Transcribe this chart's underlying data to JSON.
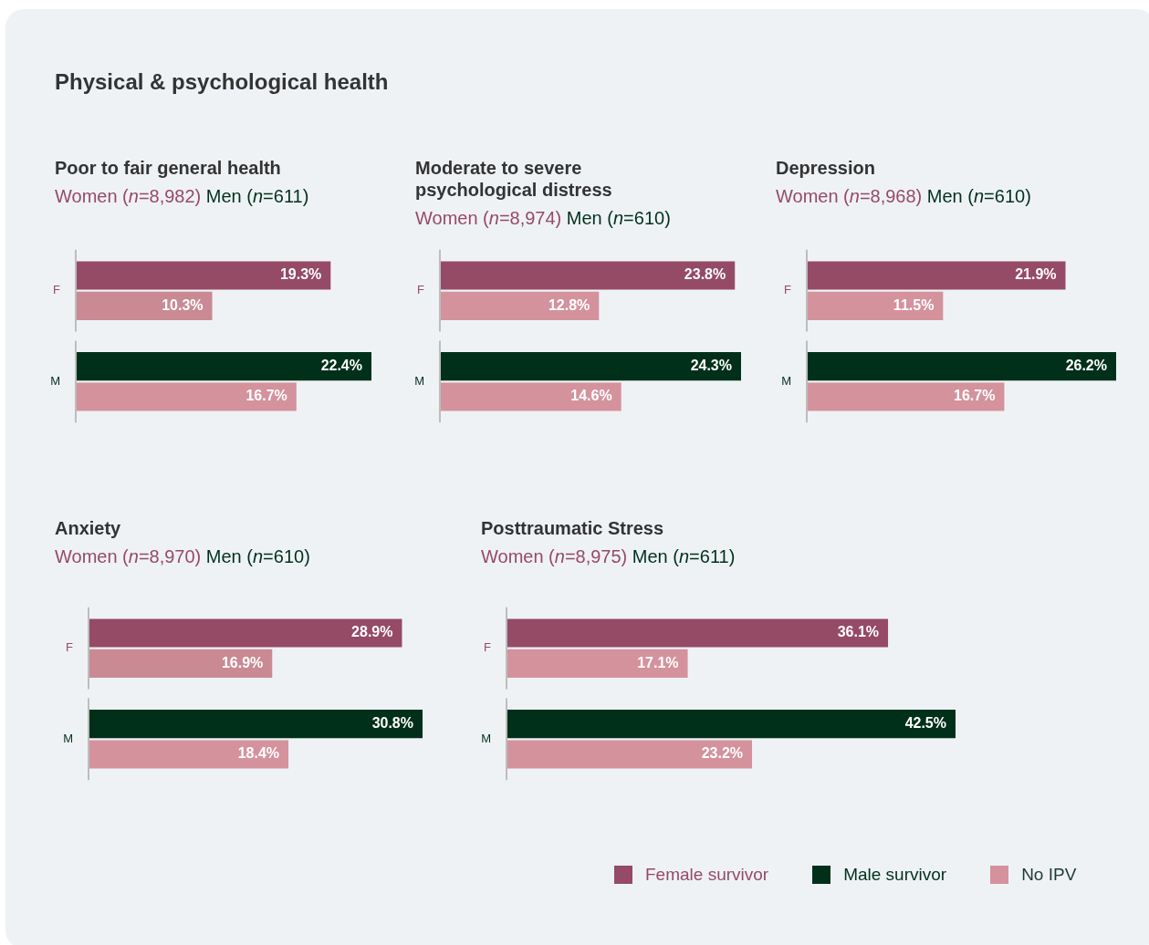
{
  "chart_data": [
    {
      "type": "bar",
      "orientation": "horizontal",
      "title": "Poor to fair general health",
      "subtitle": "Women (n=8,982) Men (n=611)",
      "annotations": [
        "Physical & psychological health"
      ],
      "categories": [
        "F",
        "M"
      ],
      "legend": "bottom right",
      "series": [
        {
          "name": "Female survivor",
          "color": "#954a66",
          "values": [
            19.3,
            null
          ],
          "value_labels": [
            "19.3%",
            null
          ]
        },
        {
          "name": "Male survivor",
          "color": "#00301a",
          "values": [
            null,
            22.4
          ],
          "value_labels": [
            null,
            "22.4%"
          ]
        },
        {
          "name": "No IPV",
          "color": "#d4929d",
          "colors": [
            "#c98a94",
            "#d4929d"
          ],
          "values": [
            10.3,
            16.7
          ],
          "value_labels": [
            "10.3%",
            "16.7%"
          ]
        }
      ]
    },
    {
      "type": "bar",
      "orientation": "horizontal",
      "title": "Moderate to severe psychological distress",
      "subtitle": "Women (n=8,974) Men (n=610)",
      "categories": [
        "F",
        "M"
      ],
      "series": [
        {
          "color": "#954a66",
          "values": [
            23.8,
            null
          ],
          "value_labels": [
            "23.8%",
            null
          ]
        },
        {
          "color": "#00301a",
          "values": [
            null,
            24.3
          ],
          "value_labels": [
            null,
            "24.3%"
          ]
        },
        {
          "color": "#d4929d",
          "values": [
            12.8,
            14.6
          ],
          "value_labels": [
            "12.8%",
            "14.6%"
          ]
        }
      ]
    },
    {
      "type": "bar",
      "orientation": "horizontal",
      "title": "Depression",
      "subtitle": "Women (n=8,968) Men (n=610)",
      "categories": [
        "F",
        "M"
      ],
      "series": [
        {
          "color": "#954a66",
          "values": [
            21.9,
            null
          ],
          "value_labels": [
            "21.9%",
            null
          ]
        },
        {
          "color": "#00301a",
          "values": [
            null,
            26.2
          ],
          "value_labels": [
            null,
            "26.2%"
          ]
        },
        {
          "color": "#d4929d",
          "values": [
            11.5,
            16.7
          ],
          "value_labels": [
            "11.5%",
            "16.7%"
          ]
        }
      ]
    },
    {
      "type": "bar",
      "orientation": "horizontal",
      "title": "Anxiety",
      "subtitle": "Women (n=8,970) Men (n=610)",
      "categories": [
        "F",
        "M"
      ],
      "series": [
        {
          "color": "#954a66",
          "values": [
            28.9,
            null
          ],
          "value_labels": [
            "28.9%",
            null
          ]
        },
        {
          "color": "#00301a",
          "values": [
            null,
            30.8
          ],
          "value_labels": [
            null,
            "30.8%"
          ]
        },
        {
          "colors": [
            "#c98a94",
            "#d4929d"
          ],
          "values": [
            16.9,
            18.4
          ],
          "value_labels": [
            "16.9%",
            "18.4%"
          ]
        }
      ]
    },
    {
      "type": "bar",
      "orientation": "horizontal",
      "title": "Posttraumatic Stress",
      "subtitle": "Women (n=8,975) Men (n=611)",
      "categories": [
        "F",
        "M"
      ],
      "series": [
        {
          "color": "#954a66",
          "values": [
            36.1,
            null
          ],
          "value_labels": [
            "36.1%",
            null
          ]
        },
        {
          "color": "#00301a",
          "values": [
            null,
            42.5
          ],
          "value_labels": [
            null,
            "42.5%"
          ]
        },
        {
          "color": "#d4929d",
          "values": [
            17.1,
            23.2
          ],
          "value_labels": [
            "17.1%",
            "23.2%"
          ]
        }
      ]
    }
  ]
}
